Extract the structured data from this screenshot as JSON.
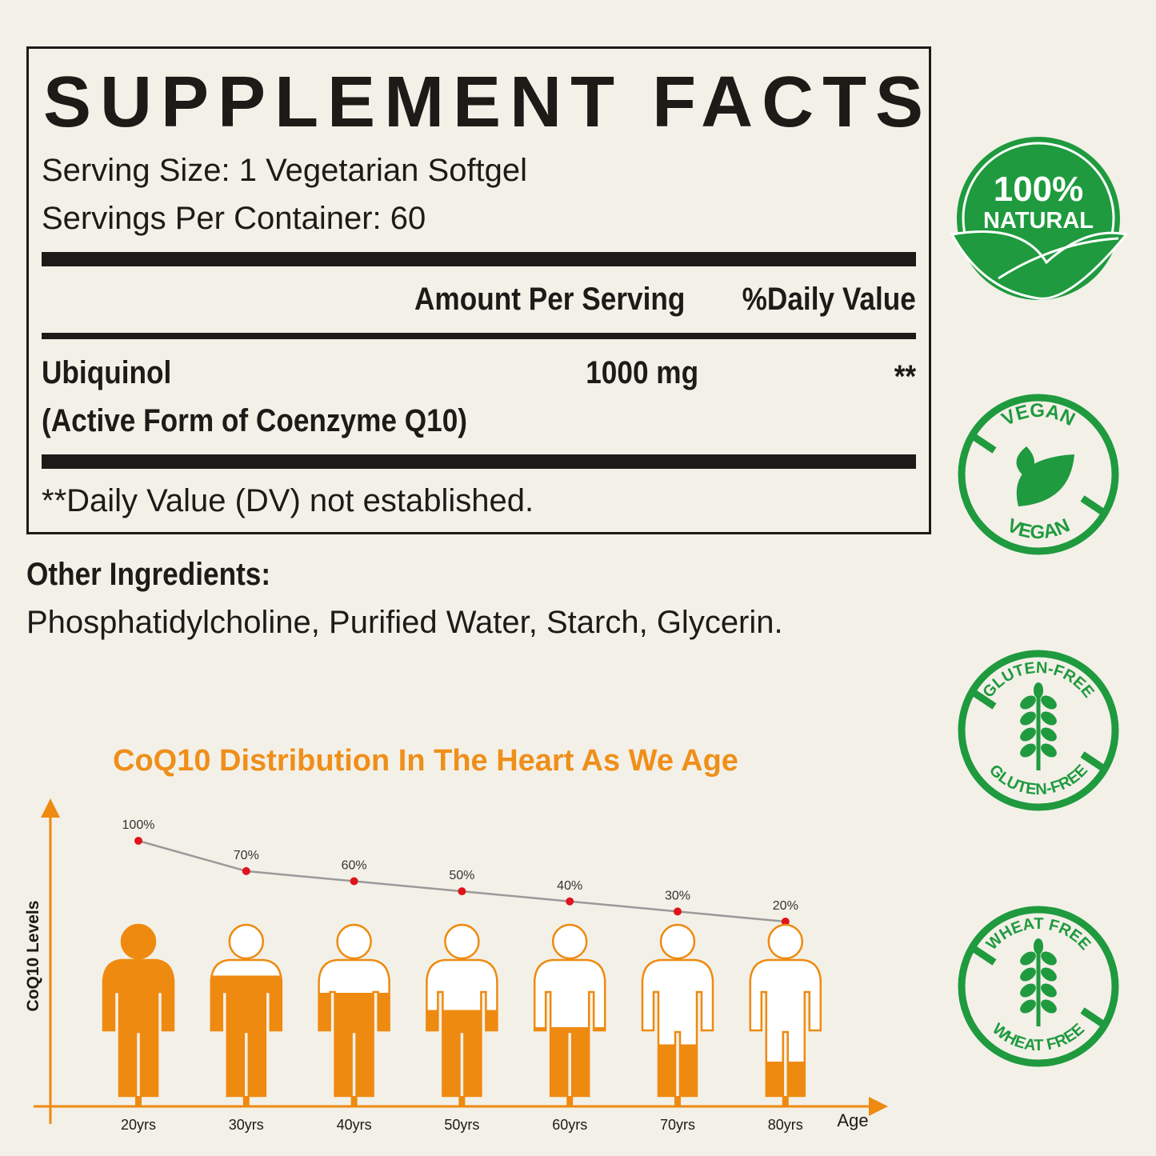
{
  "facts": {
    "title": "SUPPLEMENT FACTS",
    "serving_size": "Serving Size: 1 Vegetarian Softgel",
    "servings_per_container": "Servings Per Container: 60",
    "col_amount": "Amount Per Serving",
    "col_dv": "%Daily Value",
    "ingredient_name": "Ubiquinol",
    "ingredient_sub": "(Active Form of Coenzyme Q10)",
    "ingredient_amount": "1000 mg",
    "ingredient_dv": "**",
    "footnote": "**Daily Value (DV) not established."
  },
  "other": {
    "heading": "Other Ingredients:",
    "list": "Phosphatidylcholine, Purified Water, Starch, Glycerin."
  },
  "badges": [
    {
      "icon": "leaf-icon",
      "line1": "100%",
      "line2": "NATURAL"
    },
    {
      "icon": "leaf-icon",
      "top": "VEGAN",
      "bottom": "VEGAN"
    },
    {
      "icon": "wheat-icon",
      "top": "GLUTEN-FREE",
      "bottom": "GLUTEN-FREE"
    },
    {
      "icon": "wheat-icon",
      "top": "WHEAT FREE",
      "bottom": "WHEAT FREE"
    }
  ],
  "colors": {
    "green": "#1f9a3e",
    "orange": "#ee8a10",
    "title_orange": "#ef8f1a",
    "point_red": "#e0131c",
    "line_gray": "#9a9a9a"
  },
  "chart_data": {
    "type": "line",
    "title": "CoQ10 Distribution In The Heart As We Age",
    "xlabel": "Age",
    "ylabel": "CoQ10 Levels",
    "categories": [
      "20yrs",
      "30yrs",
      "40yrs",
      "50yrs",
      "60yrs",
      "70yrs",
      "80yrs"
    ],
    "values": [
      100,
      70,
      60,
      50,
      40,
      30,
      20
    ],
    "labels": [
      "100%",
      "70%",
      "60%",
      "50%",
      "40%",
      "30%",
      "20%"
    ],
    "grid": false
  }
}
